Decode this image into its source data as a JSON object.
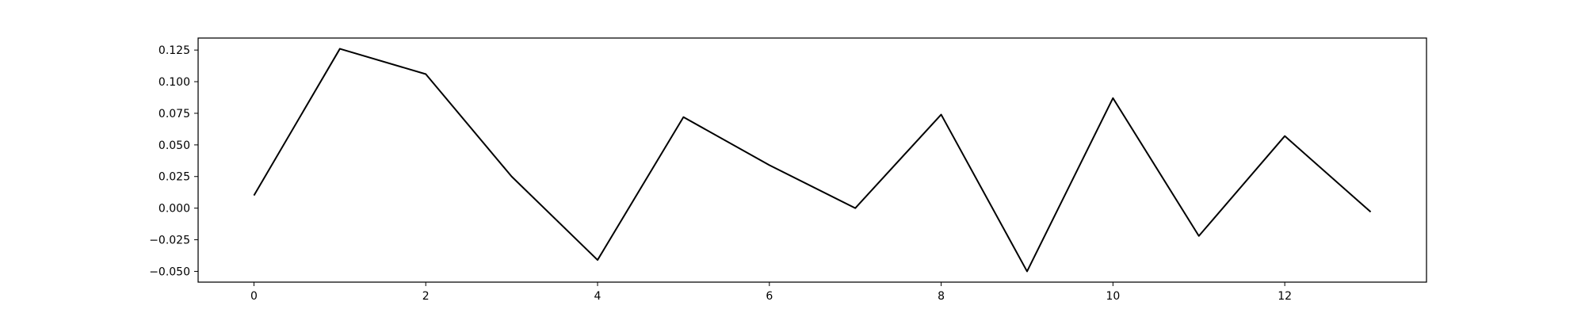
{
  "chart_data": {
    "type": "line",
    "title": "",
    "xlabel": "",
    "ylabel": "",
    "x": [
      0,
      1,
      2,
      3,
      4,
      5,
      6,
      7,
      8,
      9,
      10,
      11,
      12,
      13
    ],
    "series": [
      {
        "values": [
          0.01,
          0.126,
          0.106,
          0.025,
          -0.041,
          0.072,
          0.034,
          0.0,
          0.074,
          -0.05,
          0.087,
          -0.022,
          0.057,
          -0.003
        ]
      }
    ],
    "xlim": [
      -0.65,
      13.65
    ],
    "ylim": [
      -0.0585,
      0.1345
    ],
    "xticks": [
      0,
      2,
      4,
      6,
      8,
      10,
      12
    ],
    "xtick_labels": [
      "0",
      "2",
      "4",
      "6",
      "8",
      "10",
      "12"
    ],
    "yticks": [
      -0.05,
      -0.025,
      0.0,
      0.025,
      0.05,
      0.075,
      0.1,
      0.125
    ],
    "ytick_labels": [
      "−0.050",
      "−0.025",
      "0.000",
      "0.025",
      "0.050",
      "0.075",
      "0.100",
      "0.125"
    ],
    "grid": false,
    "legend": "none",
    "line_color": "#000000"
  }
}
